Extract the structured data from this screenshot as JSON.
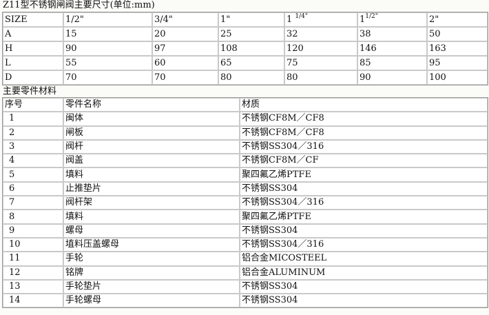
{
  "dimensions": {
    "title": "Z11型不锈钢闸阀主要尺寸(单位:mm)",
    "header": [
      {
        "main": "SIZE",
        "sup": ""
      },
      {
        "main": "1/2\"",
        "sup": ""
      },
      {
        "main": "3/4\"",
        "sup": ""
      },
      {
        "main": "1\"",
        "sup": ""
      },
      {
        "main": "1 ",
        "sup": "1/4\""
      },
      {
        "main": "1",
        "sup": "1/2\""
      },
      {
        "main": "2\"",
        "sup": ""
      }
    ],
    "rows": [
      [
        "A",
        "15",
        "20",
        "25",
        "32",
        "38",
        "50"
      ],
      [
        "H",
        "90",
        "97",
        "108",
        "120",
        "146",
        "163"
      ],
      [
        "L",
        "55",
        "60",
        "65",
        "75",
        "85",
        "95"
      ],
      [
        "D",
        "70",
        "70",
        "80",
        "80",
        "90",
        "100"
      ]
    ]
  },
  "materials": {
    "title": "主要零件材料",
    "header": [
      "序号",
      "零件名称",
      "材质"
    ],
    "rows": [
      [
        "1",
        "闽体",
        "不锈钢CF8M／CF8"
      ],
      [
        "2",
        "闸板",
        "不锈钢CF8M／CF8"
      ],
      [
        "3",
        "阀杆",
        "不锈钢SS304／316"
      ],
      [
        "4",
        "阀盖",
        "不锈钢CF8M／CF"
      ],
      [
        "5",
        "填料",
        "聚四氟乙烯PTFE"
      ],
      [
        "6",
        "止推垫片",
        "不锈钢SS304"
      ],
      [
        "7",
        "阀杆架",
        "不锈钢SS304／316"
      ],
      [
        "8",
        "填料",
        "聚四氟乙烯PTFE"
      ],
      [
        "9",
        "螺母",
        "不锈钢SS304"
      ],
      [
        "10",
        "埴料压盖螺母",
        "不锈钢SS304／316"
      ],
      [
        "11",
        "手轮",
        "铝合金MICOSTEEL"
      ],
      [
        "12",
        "铭牌",
        "铝合金ALUMINUM"
      ],
      [
        "13",
        "手轮垫片",
        "不锈钢SS304"
      ],
      [
        "14",
        "手轮螺母",
        "不锈钢SS304"
      ]
    ]
  }
}
